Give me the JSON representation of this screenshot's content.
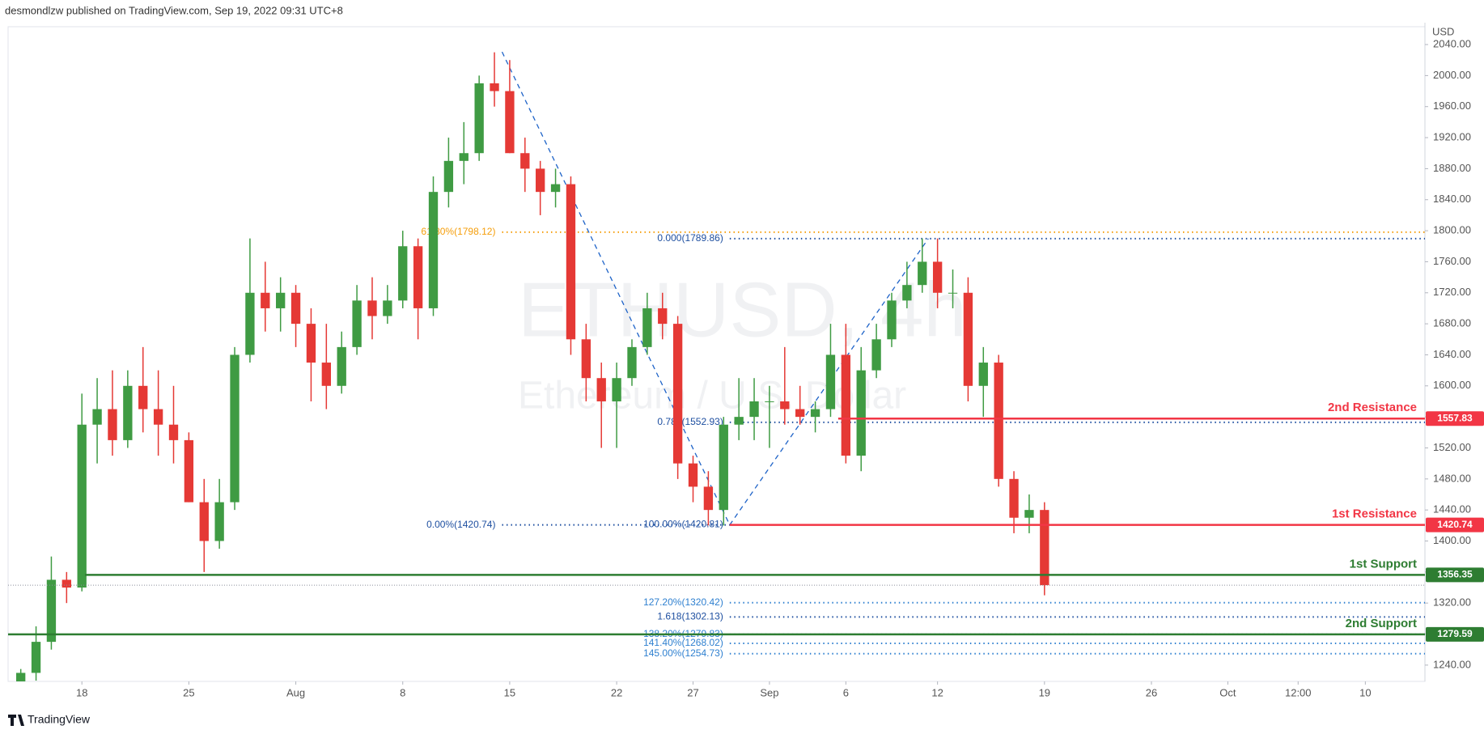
{
  "chart_data": {
    "type": "candlestick",
    "header": "desmondlzw published on TradingView.com, Sep 19, 2022 09:31 UTC+8",
    "watermark": "ETHUSD, 4h",
    "watermark_subtitle": "Ethereum / U.S. Dollar",
    "currency": "USD",
    "footer": "TradingView",
    "up_color": "#3f9b43",
    "down_color": "#e53935",
    "grid": false,
    "xlim": [
      -0.83,
      91.9
    ],
    "ylim": [
      1219,
      2063
    ],
    "xticks": [
      {
        "value": 4,
        "label": "18"
      },
      {
        "value": 11,
        "label": "25"
      },
      {
        "value": 18,
        "label": "Aug"
      },
      {
        "value": 25,
        "label": "8"
      },
      {
        "value": 32,
        "label": "15"
      },
      {
        "value": 39,
        "label": "22"
      },
      {
        "value": 44,
        "label": "27"
      },
      {
        "value": 49,
        "label": "Sep"
      },
      {
        "value": 54,
        "label": "6"
      },
      {
        "value": 60,
        "label": "12"
      },
      {
        "value": 67,
        "label": "19"
      },
      {
        "value": 74,
        "label": "26"
      },
      {
        "value": 79,
        "label": "Oct"
      },
      {
        "value": 83.6,
        "label": "12:00"
      },
      {
        "value": 88,
        "label": "10"
      }
    ],
    "yticks": [
      {
        "value": 1240,
        "label": "1240.00"
      },
      {
        "value": 1280,
        "label": "1280.00"
      },
      {
        "value": 1320,
        "label": "1320.00"
      },
      {
        "value": 1360,
        "label": "1360.00"
      },
      {
        "value": 1400,
        "label": "1400.00"
      },
      {
        "value": 1440,
        "label": "1440.00"
      },
      {
        "value": 1480,
        "label": "1480.00"
      },
      {
        "value": 1520,
        "label": "1520.00"
      },
      {
        "value": 1560,
        "label": "1560.00"
      },
      {
        "value": 1600,
        "label": "1600.00"
      },
      {
        "value": 1640,
        "label": "1640.00"
      },
      {
        "value": 1680,
        "label": "1680.00"
      },
      {
        "value": 1720,
        "label": "1720.00"
      },
      {
        "value": 1760,
        "label": "1760.00"
      },
      {
        "value": 1800,
        "label": "1800.00"
      },
      {
        "value": 1840,
        "label": "1840.00"
      },
      {
        "value": 1880,
        "label": "1880.00"
      },
      {
        "value": 1920,
        "label": "1920.00"
      },
      {
        "value": 1960,
        "label": "1960.00"
      },
      {
        "value": 2000,
        "label": "2000.00"
      },
      {
        "value": 2040,
        "label": "2040.00"
      }
    ],
    "x": [
      0,
      1,
      2,
      3,
      4,
      5,
      6,
      7,
      8,
      9,
      10,
      11,
      12,
      13,
      14,
      15,
      16,
      17,
      18,
      19,
      20,
      21,
      22,
      23,
      24,
      25,
      26,
      27,
      28,
      29,
      30,
      31,
      32,
      33,
      34,
      35,
      36,
      37,
      38,
      39,
      40,
      41,
      42,
      43,
      44,
      45,
      46,
      47,
      48,
      49,
      50,
      51,
      52,
      53,
      54,
      55,
      56,
      57,
      58,
      59,
      60,
      61,
      62,
      63,
      64,
      65,
      66,
      67
    ],
    "ohlc": [
      [
        1190,
        1235,
        1180,
        1230
      ],
      [
        1230,
        1290,
        1220,
        1270
      ],
      [
        1270,
        1380,
        1260,
        1350
      ],
      [
        1350,
        1360,
        1320,
        1340
      ],
      [
        1340,
        1590,
        1335,
        1550
      ],
      [
        1550,
        1610,
        1500,
        1570
      ],
      [
        1570,
        1620,
        1510,
        1530
      ],
      [
        1530,
        1620,
        1520,
        1600
      ],
      [
        1600,
        1650,
        1540,
        1570
      ],
      [
        1570,
        1620,
        1510,
        1550
      ],
      [
        1550,
        1600,
        1500,
        1530
      ],
      [
        1530,
        1540,
        1450,
        1450
      ],
      [
        1450,
        1480,
        1360,
        1400
      ],
      [
        1400,
        1480,
        1390,
        1450
      ],
      [
        1450,
        1650,
        1440,
        1640
      ],
      [
        1640,
        1790,
        1630,
        1720
      ],
      [
        1720,
        1760,
        1670,
        1700
      ],
      [
        1700,
        1740,
        1670,
        1720
      ],
      [
        1720,
        1730,
        1650,
        1680
      ],
      [
        1680,
        1700,
        1580,
        1630
      ],
      [
        1630,
        1680,
        1570,
        1600
      ],
      [
        1600,
        1670,
        1590,
        1650
      ],
      [
        1650,
        1730,
        1640,
        1710
      ],
      [
        1710,
        1740,
        1660,
        1690
      ],
      [
        1690,
        1730,
        1680,
        1710
      ],
      [
        1710,
        1800,
        1700,
        1780
      ],
      [
        1780,
        1790,
        1660,
        1700
      ],
      [
        1700,
        1870,
        1690,
        1850
      ],
      [
        1850,
        1920,
        1830,
        1890
      ],
      [
        1890,
        1940,
        1860,
        1900
      ],
      [
        1900,
        2000,
        1890,
        1990
      ],
      [
        1990,
        2030,
        1960,
        1980
      ],
      [
        1980,
        2020,
        1900,
        1900
      ],
      [
        1900,
        1920,
        1850,
        1880
      ],
      [
        1880,
        1890,
        1820,
        1850
      ],
      [
        1850,
        1880,
        1830,
        1860
      ],
      [
        1860,
        1870,
        1640,
        1660
      ],
      [
        1660,
        1680,
        1580,
        1610
      ],
      [
        1610,
        1630,
        1520,
        1580
      ],
      [
        1580,
        1630,
        1520,
        1610
      ],
      [
        1610,
        1660,
        1600,
        1650
      ],
      [
        1650,
        1720,
        1640,
        1700
      ],
      [
        1700,
        1720,
        1660,
        1680
      ],
      [
        1680,
        1690,
        1480,
        1500
      ],
      [
        1500,
        1510,
        1450,
        1470
      ],
      [
        1470,
        1490,
        1420,
        1440
      ],
      [
        1440,
        1560,
        1420,
        1550
      ],
      [
        1550,
        1610,
        1530,
        1560
      ],
      [
        1560,
        1610,
        1530,
        1580
      ],
      [
        1580,
        1600,
        1520,
        1580
      ],
      [
        1580,
        1650,
        1550,
        1570
      ],
      [
        1570,
        1600,
        1550,
        1560
      ],
      [
        1560,
        1580,
        1540,
        1570
      ],
      [
        1570,
        1680,
        1560,
        1640
      ],
      [
        1640,
        1680,
        1500,
        1510
      ],
      [
        1510,
        1650,
        1490,
        1620
      ],
      [
        1620,
        1680,
        1610,
        1660
      ],
      [
        1660,
        1720,
        1650,
        1710
      ],
      [
        1710,
        1760,
        1700,
        1730
      ],
      [
        1730,
        1790,
        1720,
        1760
      ],
      [
        1760,
        1790,
        1700,
        1720
      ],
      [
        1720,
        1750,
        1700,
        1720
      ],
      [
        1720,
        1740,
        1580,
        1600
      ],
      [
        1600,
        1650,
        1560,
        1630
      ],
      [
        1630,
        1640,
        1470,
        1480
      ],
      [
        1480,
        1490,
        1410,
        1430
      ],
      [
        1430,
        1460,
        1410,
        1440
      ],
      [
        1440,
        1450,
        1330,
        1343
      ]
    ],
    "levels": [
      {
        "name": "2nd Resistance",
        "value": 1557.83,
        "color": "#f23645",
        "x_start": 53.5
      },
      {
        "name": "1st Resistance",
        "value": 1420.74,
        "color": "#f23645",
        "x_start": 46.4
      },
      {
        "name": "1st Support",
        "value": 1356.35,
        "color": "#2e7d32",
        "x_start": 4.2
      },
      {
        "name": "2nd Support",
        "value": 1279.59,
        "color": "#2e7d32",
        "x_start": -0.83
      }
    ],
    "fib_levels": [
      {
        "label": "61.80%(1798.12)",
        "value": 1798.12,
        "color": "#f59e0b",
        "x_start": 31.5,
        "x_end": 91.9
      },
      {
        "label": "0.000(1789.86)",
        "value": 1789.86,
        "color": "#1e4fa0",
        "x_start": 46.4,
        "x_end": 91.9
      },
      {
        "label": "0.786(1552.93)",
        "value": 1552.93,
        "color": "#1e4fa0",
        "x_start": 46.4,
        "x_end": 91.9
      },
      {
        "label": "0.00%(1420.74)",
        "value": 1420.74,
        "color": "#1e4fa0",
        "x_start": 31.5,
        "x_end": 46.4
      },
      {
        "label": "100.00%(1420.81)",
        "value": 1420.81,
        "color": "#1e4fa0",
        "x_start": 46.4,
        "x_end": 91.9
      },
      {
        "label": "127.20%(1320.42)",
        "value": 1320.42,
        "color": "#2f80d0",
        "x_start": 46.4,
        "x_end": 91.9
      },
      {
        "label": "1.618(1302.13)",
        "value": 1302.13,
        "color": "#1e4fa0",
        "x_start": 46.4,
        "x_end": 91.9
      },
      {
        "label": "138.20%(1279.83)",
        "value": 1279.83,
        "color": "#2f80d0",
        "x_start": 46.4,
        "x_end": 91.9
      },
      {
        "label": "141.40%(1268.02)",
        "value": 1268.02,
        "color": "#2f80d0",
        "x_start": 46.4,
        "x_end": 91.9
      },
      {
        "label": "145.00%(1254.73)",
        "value": 1254.73,
        "color": "#2f80d0",
        "x_start": 46.4,
        "x_end": 91.9
      }
    ],
    "trendlines": [
      {
        "color": "#1e63c8",
        "x": [
          31.5,
          46.4
        ],
        "y": [
          2030.5,
          1420.74
        ]
      },
      {
        "color": "#1e63c8",
        "x": [
          46.4,
          59.4
        ],
        "y": [
          1420.74,
          1789.86
        ]
      }
    ]
  }
}
